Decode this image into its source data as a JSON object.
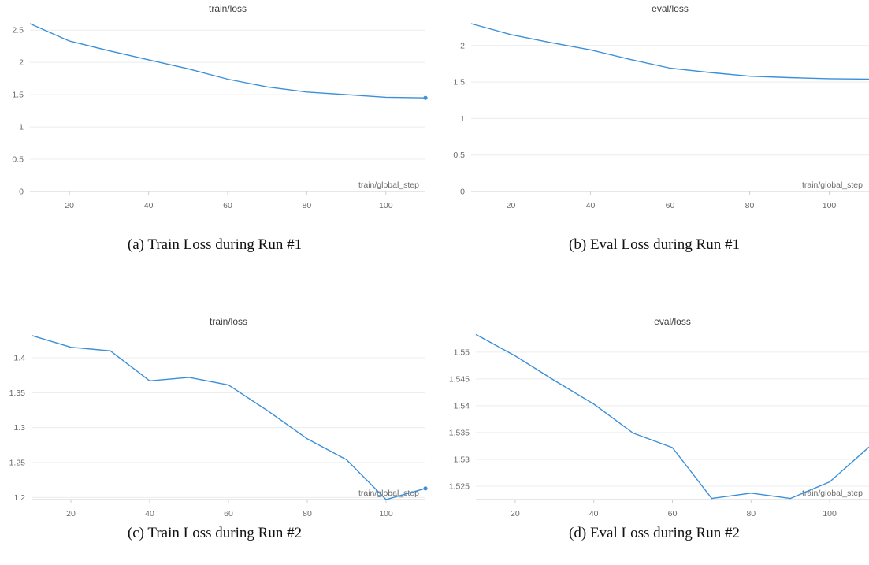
{
  "chart_data": [
    {
      "type": "line",
      "title": "train/loss",
      "xlabel": "train/global_step",
      "xlim": [
        10,
        110
      ],
      "ylim": [
        0,
        2.6
      ],
      "xticks": [
        20,
        40,
        60,
        80,
        100
      ],
      "yticks": [
        0,
        0.5,
        1,
        1.5,
        2,
        2.5
      ],
      "ytick_labels": [
        "0",
        "0.5",
        "1",
        "1.5",
        "2",
        "2.5"
      ],
      "grid": true,
      "color": "#3b8fd9",
      "end_marker": true,
      "series": [
        {
          "x": [
            10,
            20,
            30,
            40,
            50,
            60,
            70,
            80,
            90,
            100,
            110
          ],
          "y": [
            2.6,
            2.33,
            2.18,
            2.04,
            1.9,
            1.74,
            1.62,
            1.54,
            1.5,
            1.46,
            1.45
          ]
        }
      ]
    },
    {
      "type": "line",
      "title": "eval/loss",
      "xlabel": "train/global_step",
      "xlim": [
        10,
        110
      ],
      "ylim": [
        0,
        2.3
      ],
      "xticks": [
        20,
        40,
        60,
        80,
        100
      ],
      "yticks": [
        0,
        0.5,
        1,
        1.5,
        2
      ],
      "ytick_labels": [
        "0",
        "0.5",
        "1",
        "1.5",
        "2"
      ],
      "grid": true,
      "color": "#3b8fd9",
      "end_marker": false,
      "series": [
        {
          "x": [
            10,
            20,
            30,
            40,
            50,
            60,
            70,
            80,
            90,
            100,
            110
          ],
          "y": [
            2.3,
            2.15,
            2.04,
            1.94,
            1.81,
            1.69,
            1.63,
            1.58,
            1.56,
            1.545,
            1.54
          ]
        }
      ]
    },
    {
      "type": "line",
      "title": "train/loss",
      "xlabel": "train/global_step",
      "xlim": [
        10,
        110
      ],
      "ylim": [
        1.197,
        1.435
      ],
      "xticks": [
        20,
        40,
        60,
        80,
        100
      ],
      "yticks": [
        1.2,
        1.25,
        1.3,
        1.35,
        1.4
      ],
      "ytick_labels": [
        "1.2",
        "1.25",
        "1.3",
        "1.35",
        "1.4"
      ],
      "grid": true,
      "color": "#3b8fd9",
      "end_marker": true,
      "series": [
        {
          "x": [
            10,
            20,
            30,
            40,
            50,
            60,
            70,
            80,
            90,
            100,
            110
          ],
          "y": [
            1.432,
            1.415,
            1.41,
            1.367,
            1.372,
            1.361,
            1.324,
            1.284,
            1.254,
            1.197,
            1.213
          ]
        }
      ]
    },
    {
      "type": "line",
      "title": "eval/loss",
      "xlabel": "train/global_step",
      "xlim": [
        10,
        110
      ],
      "ylim": [
        1.5225,
        1.5535
      ],
      "xticks": [
        20,
        40,
        60,
        80,
        100
      ],
      "yticks": [
        1.525,
        1.53,
        1.535,
        1.54,
        1.545,
        1.55
      ],
      "ytick_labels": [
        "1.525",
        "1.53",
        "1.535",
        "1.54",
        "1.545",
        "1.55"
      ],
      "grid": true,
      "color": "#3b8fd9",
      "end_marker": false,
      "series": [
        {
          "x": [
            10,
            20,
            30,
            40,
            50,
            60,
            70,
            80,
            90,
            100,
            110
          ],
          "y": [
            1.5533,
            1.5493,
            1.5447,
            1.5403,
            1.5349,
            1.5322,
            1.5227,
            1.5237,
            1.5227,
            1.5258,
            1.5323
          ]
        }
      ]
    }
  ],
  "captions": [
    "(a) Train Loss during Run #1",
    "(b) Eval Loss during Run #1",
    "(c) Train Loss during Run #2",
    "(d) Eval Loss during Run #2"
  ]
}
